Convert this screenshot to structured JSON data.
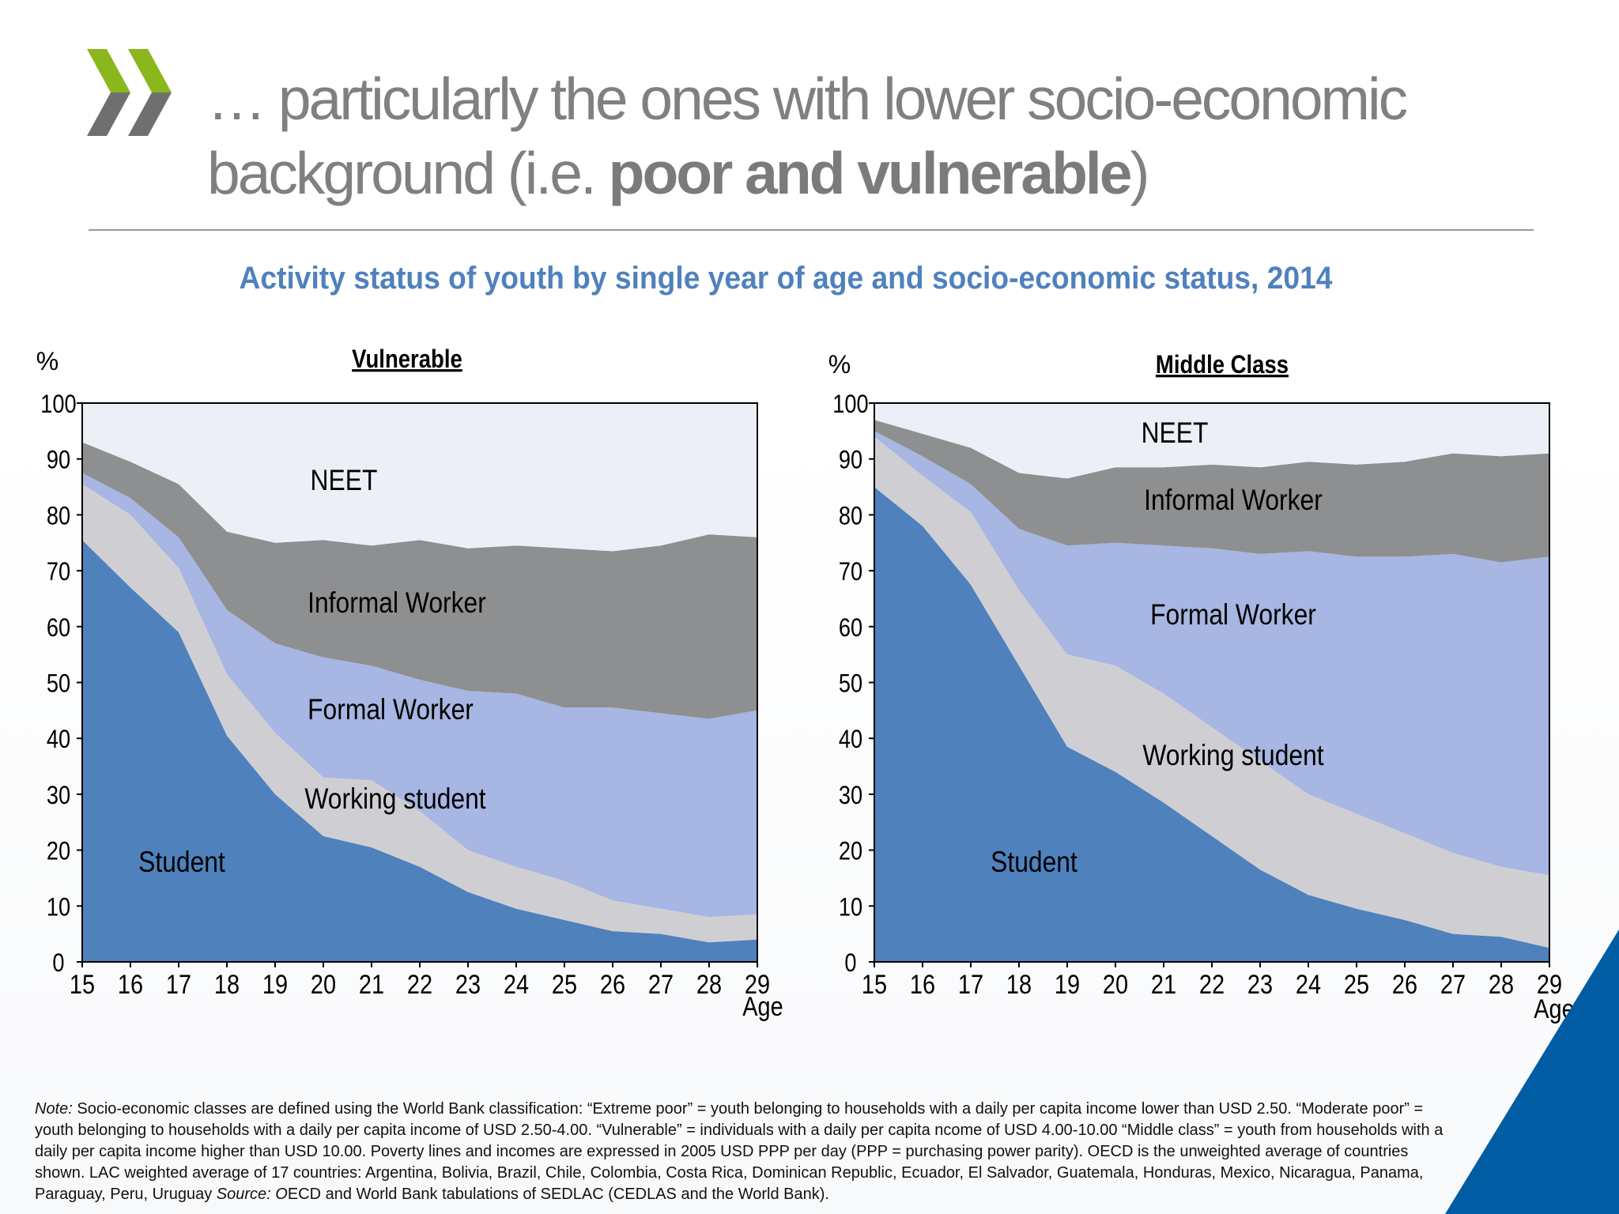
{
  "header": {
    "title_part1": "… particularly the ones with lower socio-economic background (i.e. ",
    "title_bold": "poor and vulnerable",
    "title_part2": ")",
    "logo_colors": {
      "green": "#8ab71b",
      "grey": "#6f6f6f"
    }
  },
  "figure_title": "Activity status of youth by single year of age and socio-economic status, 2014",
  "footnote": {
    "note_label": "Note:",
    "note_text": " Socio-economic classes are defined using the World Bank classification: “Extreme poor” = youth belonging to households with a daily per capita income lower than USD 2.50. “Moderate poor” = youth belonging to households with a daily per capita income of USD 2.50-4.00. “Vulnerable” = individuals with a daily per capita ncome of USD 4.00-10.00 “Middle class” = youth from households with a daily per capita income higher than USD 10.00. Poverty lines and incomes are expressed in 2005 USD PPP per day (PPP = purchasing power parity).  OECD is the unweighted average of countries shown. LAC weighted average of 17 countries: Argentina, Bolivia, Brazil, Chile, Colombia, Costa Rica, Dominican Republic, Ecuador, El Salvador, Guatemala, Honduras, Mexico, Nicaragua, Panama, Paraguay, Peru, Uruguay ",
    "source_label": "Source: O",
    "source_text": "ECD and World Bank tabulations of SEDLAC (CEDLAS and the World Bank)."
  },
  "colors": {
    "Student": "#4f81bd",
    "Working student": "#cfcfd3",
    "Formal Worker": "#a7b6e2",
    "Informal Worker": "#8e8f91",
    "NEET": "#eceff6",
    "corner": "#005da4"
  },
  "chart_data": [
    {
      "type": "area",
      "stacked": true,
      "title": "Vulnerable",
      "ylabel": "%",
      "xlabel": "Age",
      "ylim": [
        0,
        100
      ],
      "yticks": [
        0,
        10,
        20,
        30,
        40,
        50,
        60,
        70,
        80,
        90,
        100
      ],
      "x": [
        15,
        16,
        17,
        18,
        19,
        20,
        21,
        22,
        23,
        24,
        25,
        26,
        27,
        28,
        29
      ],
      "series": [
        {
          "name": "Student",
          "values": [
            75.5,
            67,
            59,
            40.5,
            30,
            22.5,
            20.5,
            17,
            12.5,
            9.5,
            7.5,
            5.5,
            5,
            3.5,
            4
          ]
        },
        {
          "name": "Working student",
          "values": [
            10,
            13,
            11.5,
            11,
            11,
            10.5,
            12,
            10,
            7.5,
            7.5,
            7,
            5.5,
            4.5,
            4.5,
            4.5
          ]
        },
        {
          "name": "Formal Worker",
          "values": [
            2,
            3,
            5.5,
            11.5,
            16,
            21.5,
            20.5,
            23.5,
            28.5,
            31,
            31,
            34.5,
            35,
            35.5,
            36.5
          ]
        },
        {
          "name": "Informal Worker",
          "values": [
            5.5,
            6.5,
            9.5,
            14,
            18,
            21,
            21.5,
            25,
            25.5,
            26.5,
            28.5,
            28,
            30,
            33,
            31
          ]
        },
        {
          "name": "NEET",
          "values": [
            7,
            10.5,
            14.5,
            23,
            25,
            24.5,
            25.5,
            24.5,
            26,
            25.5,
            26,
            26.5,
            25.5,
            23.5,
            24
          ]
        }
      ]
    },
    {
      "type": "area",
      "stacked": true,
      "title": "Middle Class",
      "ylabel": "%",
      "xlabel": "Age",
      "ylim": [
        0,
        100
      ],
      "yticks": [
        0,
        10,
        20,
        30,
        40,
        50,
        60,
        70,
        80,
        90,
        100
      ],
      "x": [
        15,
        16,
        17,
        18,
        19,
        20,
        21,
        22,
        23,
        24,
        25,
        26,
        27,
        28,
        29
      ],
      "series": [
        {
          "name": "Student",
          "values": [
            85,
            78,
            67.5,
            53,
            38.5,
            34,
            28.5,
            22.5,
            16.5,
            12,
            9.5,
            7.5,
            5,
            4.5,
            2.5
          ]
        },
        {
          "name": "Working student",
          "values": [
            9,
            9,
            13,
            13.5,
            16.5,
            19,
            19.5,
            19.5,
            19.5,
            18,
            17,
            15.5,
            14.5,
            12.5,
            13
          ]
        },
        {
          "name": "Formal Worker",
          "values": [
            1,
            3.5,
            5,
            11,
            19.5,
            22,
            26.5,
            32,
            37,
            43.5,
            46,
            49.5,
            53.5,
            54.5,
            57
          ]
        },
        {
          "name": "Informal Worker",
          "values": [
            2,
            4,
            6.5,
            10,
            12,
            13.5,
            14,
            15,
            15.5,
            16,
            16.5,
            17,
            18,
            19,
            18.5
          ]
        },
        {
          "name": "NEET",
          "values": [
            3,
            5.5,
            8,
            12.5,
            13.5,
            11.5,
            11.5,
            11,
            11.5,
            10.5,
            11,
            10.5,
            9,
            9.5,
            9
          ]
        }
      ]
    }
  ]
}
